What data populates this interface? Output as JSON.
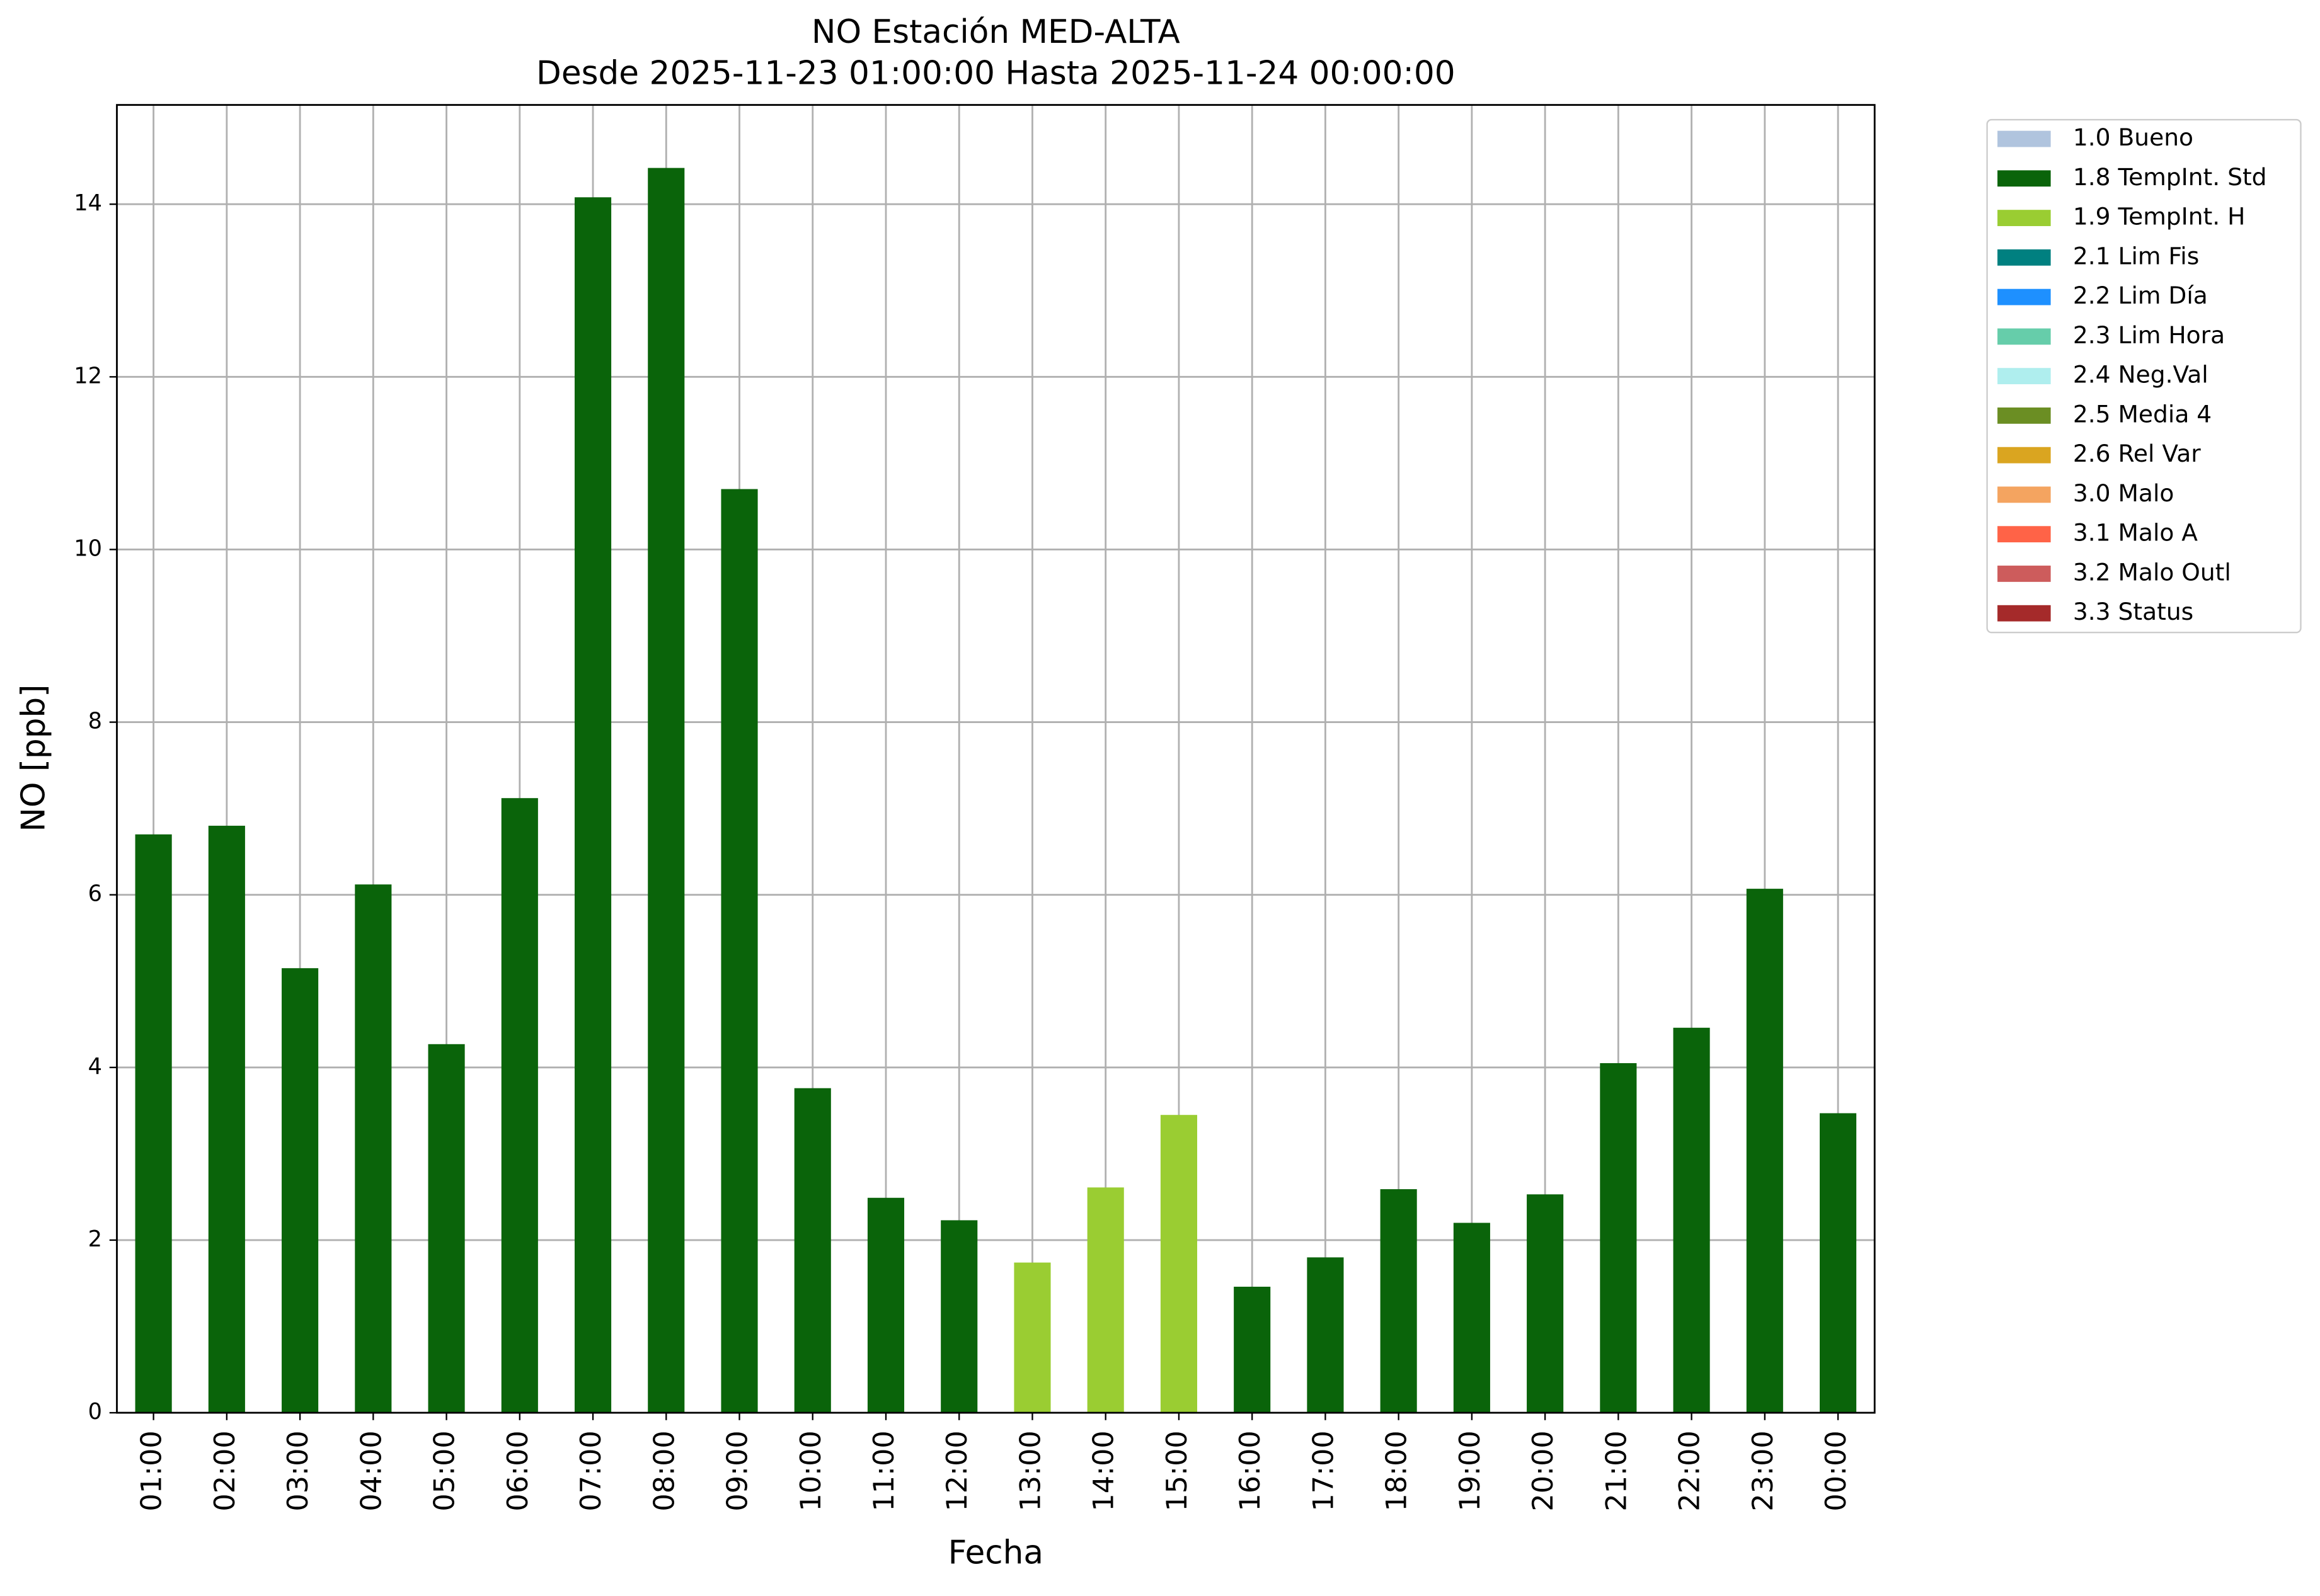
{
  "chart_data": {
    "type": "stacked-bar",
    "title": "NO Estación MED-ALTA",
    "subtitle": "Desde 2025-11-23 01:00:00 Hasta 2025-11-24 00:00:00",
    "x_label": "Fecha",
    "y_label": "NO [ppb]",
    "categories": [
      "01:00",
      "02:00",
      "03:00",
      "04:00",
      "05:00",
      "06:00",
      "07:00",
      "08:00",
      "09:00",
      "10:00",
      "11:00",
      "12:00",
      "13:00",
      "14:00",
      "15:00",
      "16:00",
      "17:00",
      "18:00",
      "19:00",
      "20:00",
      "21:00",
      "22:00",
      "23:00",
      "00:00"
    ],
    "ylim": [
      0,
      15.15
    ],
    "yticks": [
      0,
      2,
      4,
      6,
      8,
      10,
      12,
      14
    ],
    "grid": true,
    "legend": "outside-right",
    "series": [
      {
        "name": "1.0 Bueno",
        "color": "#b0c4de",
        "values": [
          null,
          null,
          null,
          null,
          null,
          null,
          null,
          null,
          null,
          null,
          null,
          null,
          null,
          null,
          null,
          null,
          null,
          null,
          null,
          null,
          null,
          null,
          null,
          null
        ]
      },
      {
        "name": "1.8 TempInt. Std",
        "color": "#0a640a",
        "values": [
          6.7,
          6.8,
          5.15,
          6.12,
          4.27,
          7.12,
          14.08,
          14.42,
          10.7,
          3.76,
          2.49,
          2.23,
          null,
          null,
          null,
          1.46,
          1.8,
          2.59,
          2.2,
          2.53,
          4.05,
          4.46,
          6.07,
          3.47
        ]
      },
      {
        "name": "1.9 TempInt. H",
        "color": "#9acd32",
        "values": [
          null,
          null,
          null,
          null,
          null,
          null,
          null,
          null,
          null,
          null,
          null,
          null,
          1.74,
          2.61,
          3.45,
          null,
          null,
          null,
          null,
          null,
          null,
          null,
          null,
          null
        ]
      },
      {
        "name": "2.1 Lim Fis",
        "color": "#008080",
        "values": [
          null,
          null,
          null,
          null,
          null,
          null,
          null,
          null,
          null,
          null,
          null,
          null,
          null,
          null,
          null,
          null,
          null,
          null,
          null,
          null,
          null,
          null,
          null,
          null
        ]
      },
      {
        "name": "2.2 Lim Día",
        "color": "#1e90ff",
        "values": [
          null,
          null,
          null,
          null,
          null,
          null,
          null,
          null,
          null,
          null,
          null,
          null,
          null,
          null,
          null,
          null,
          null,
          null,
          null,
          null,
          null,
          null,
          null,
          null
        ]
      },
      {
        "name": "2.3 Lim Hora",
        "color": "#66cdaa",
        "values": [
          null,
          null,
          null,
          null,
          null,
          null,
          null,
          null,
          null,
          null,
          null,
          null,
          null,
          null,
          null,
          null,
          null,
          null,
          null,
          null,
          null,
          null,
          null,
          null
        ]
      },
      {
        "name": "2.4 Neg.Val",
        "color": "#afeeee",
        "values": [
          null,
          null,
          null,
          null,
          null,
          null,
          null,
          null,
          null,
          null,
          null,
          null,
          null,
          null,
          null,
          null,
          null,
          null,
          null,
          null,
          null,
          null,
          null,
          null
        ]
      },
      {
        "name": "2.5 Media 4",
        "color": "#6b8e23",
        "values": [
          null,
          null,
          null,
          null,
          null,
          null,
          null,
          null,
          null,
          null,
          null,
          null,
          null,
          null,
          null,
          null,
          null,
          null,
          null,
          null,
          null,
          null,
          null,
          null
        ]
      },
      {
        "name": "2.6 Rel Var",
        "color": "#daa520",
        "values": [
          null,
          null,
          null,
          null,
          null,
          null,
          null,
          null,
          null,
          null,
          null,
          null,
          null,
          null,
          null,
          null,
          null,
          null,
          null,
          null,
          null,
          null,
          null,
          null
        ]
      },
      {
        "name": "3.0 Malo",
        "color": "#f4a460",
        "values": [
          null,
          null,
          null,
          null,
          null,
          null,
          null,
          null,
          null,
          null,
          null,
          null,
          null,
          null,
          null,
          null,
          null,
          null,
          null,
          null,
          null,
          null,
          null,
          null
        ]
      },
      {
        "name": "3.1 Malo A",
        "color": "#ff6347",
        "values": [
          null,
          null,
          null,
          null,
          null,
          null,
          null,
          null,
          null,
          null,
          null,
          null,
          null,
          null,
          null,
          null,
          null,
          null,
          null,
          null,
          null,
          null,
          null,
          null
        ]
      },
      {
        "name": "3.2 Malo Outl",
        "color": "#cd5c5c",
        "values": [
          null,
          null,
          null,
          null,
          null,
          null,
          null,
          null,
          null,
          null,
          null,
          null,
          null,
          null,
          null,
          null,
          null,
          null,
          null,
          null,
          null,
          null,
          null,
          null
        ]
      },
      {
        "name": "3.3 Status",
        "color": "#a52a2a",
        "values": [
          null,
          null,
          null,
          null,
          null,
          null,
          null,
          null,
          null,
          null,
          null,
          null,
          null,
          null,
          null,
          null,
          null,
          null,
          null,
          null,
          null,
          null,
          null,
          null
        ]
      }
    ]
  }
}
